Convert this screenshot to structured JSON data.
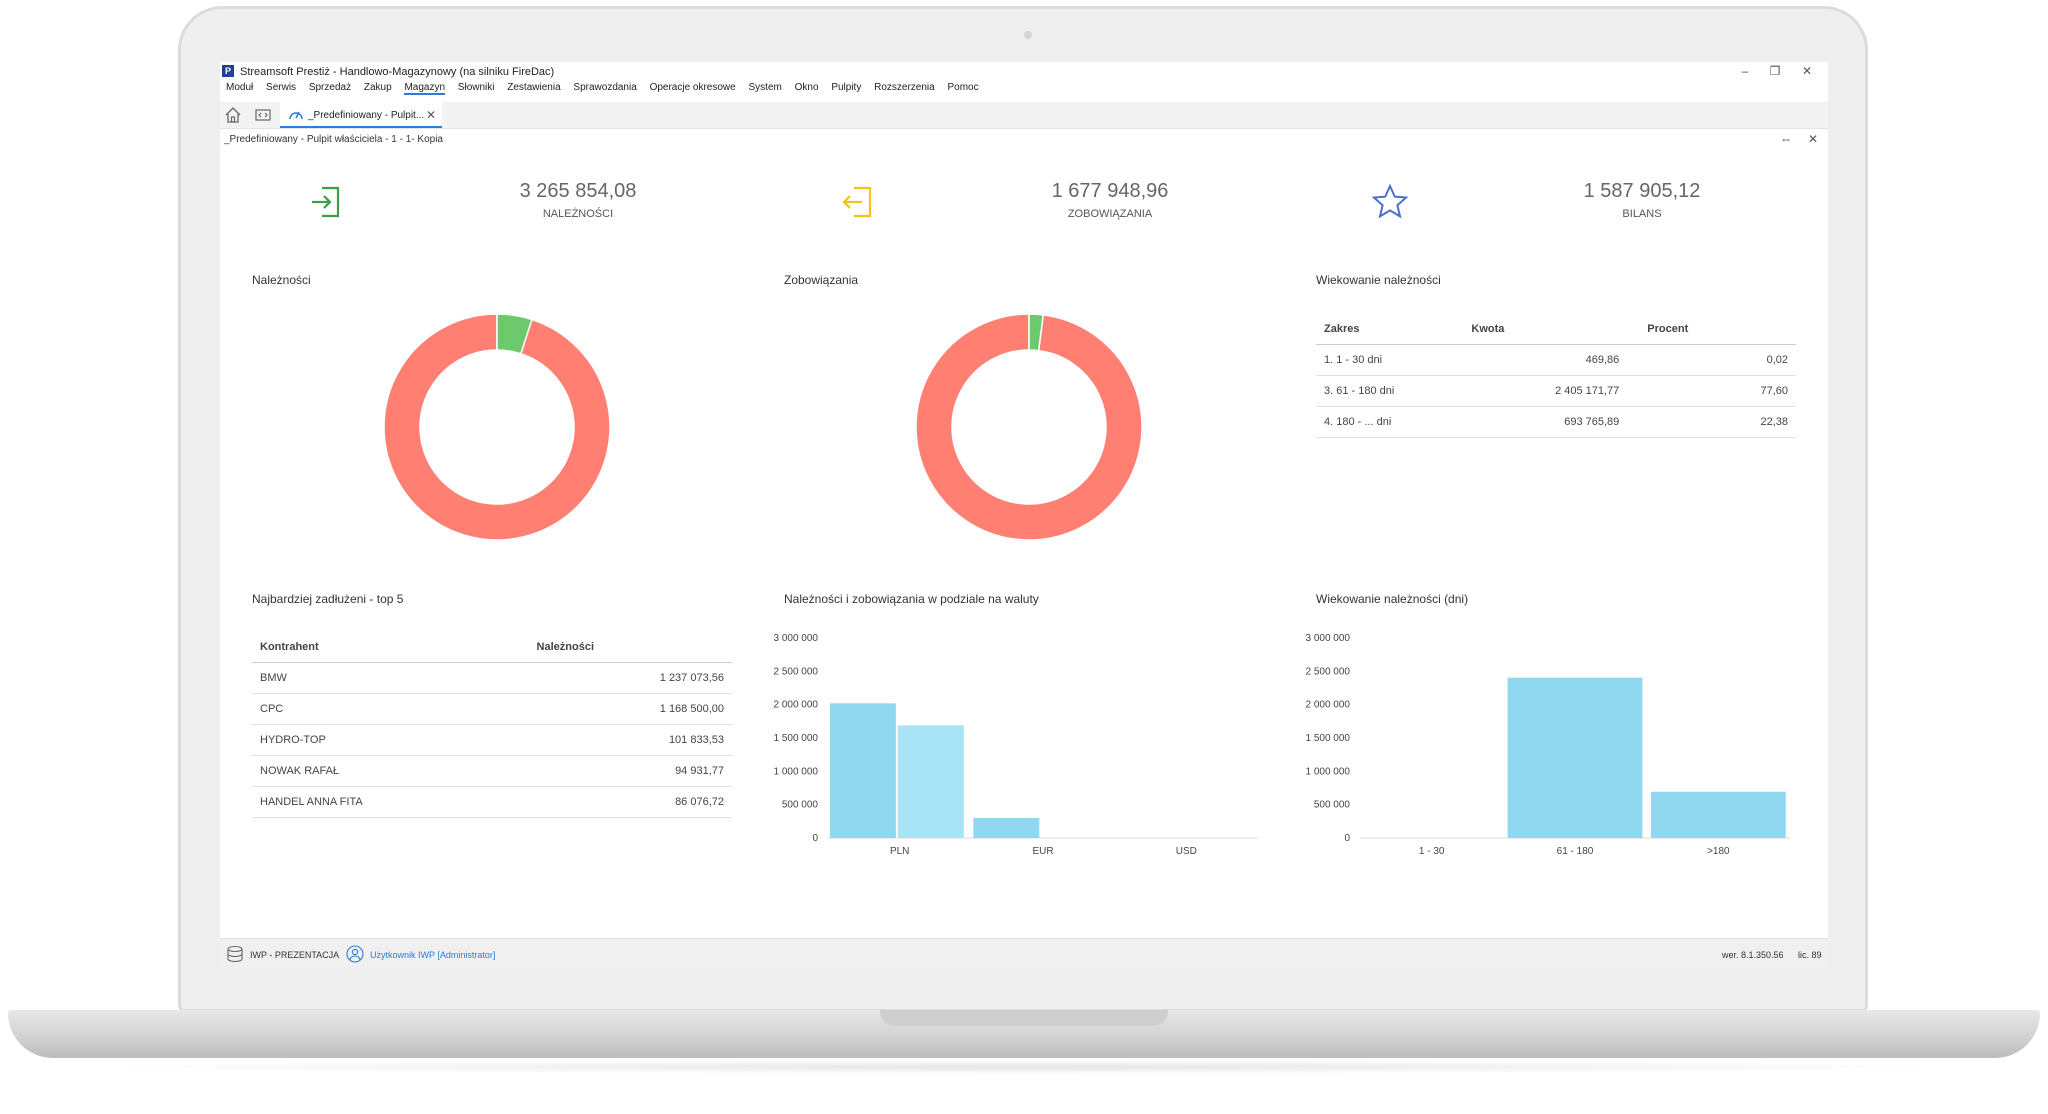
{
  "window": {
    "title": "Streamsoft Prestiż - Handlowo-Magazynowy (na silniku FireDac)",
    "app_icon": "P",
    "minimize": "–",
    "restore": "❐",
    "close": "✕"
  },
  "menu": [
    "Moduł",
    "Serwis",
    "Sprzedaż",
    "Zakup",
    "Magazyn",
    "Słowniki",
    "Zestawienia",
    "Sprawozdania",
    "Operacje okresowe",
    "System",
    "Okno",
    "Pulpity",
    "Rozszerzenia",
    "Pomoc"
  ],
  "tabs": {
    "active_label": "_Predefiniowany - Pulpit...",
    "close": "✕"
  },
  "page": {
    "title": "_Predefiniowany - Pulpit właściciela - 1 - 1- Kopia",
    "pin": "⇔",
    "close": "✕"
  },
  "kpis": [
    {
      "value": "3 265 854,08",
      "label": "NALEŻNOŚCI",
      "icon": "login-icon",
      "color": "#3aa043"
    },
    {
      "value": "1 677 948,96",
      "label": "ZOBOWIĄZANIA",
      "icon": "logout-icon",
      "color": "#f2c31c"
    },
    {
      "value": "1 587 905,12",
      "label": "BILANS",
      "icon": "star-icon",
      "color": "#4a6fc9"
    }
  ],
  "panels": {
    "receivables": "Należności",
    "liabilities": "Zobowiązania",
    "aging": "Wiekowanie należności",
    "top5": "Najbardziej zadłużeni - top 5",
    "currency": "Należności i zobowiązania w podziale na waluty",
    "aging_days": "Wiekowanie należności (dni)"
  },
  "aging_table": {
    "headers": [
      "Zakres",
      "Kwota",
      "Procent"
    ],
    "rows": [
      [
        "1. 1 - 30 dni",
        "469,86",
        "0,02"
      ],
      [
        "3. 61 - 180 dni",
        "2 405 171,77",
        "77,60"
      ],
      [
        "4. 180 - ... dni",
        "693 765,89",
        "22,38"
      ]
    ]
  },
  "top5_table": {
    "headers": [
      "Kontrahent",
      "Należności"
    ],
    "rows": [
      [
        "BMW",
        "1 237 073,56"
      ],
      [
        "CPC",
        "1 168 500,00"
      ],
      [
        "HYDRO-TOP",
        "101 833,53"
      ],
      [
        "NOWAK RAFAŁ",
        "94 931,77"
      ],
      [
        "HANDEL ANNA FITA",
        "86 076,72"
      ]
    ]
  },
  "chart_data": [
    {
      "type": "pie",
      "title": "Należności",
      "donut": true,
      "slices": [
        {
          "value": 95,
          "color": "#ff8073"
        },
        {
          "value": 5,
          "color": "#6cc96c"
        }
      ]
    },
    {
      "type": "pie",
      "title": "Zobowiązania",
      "donut": true,
      "slices": [
        {
          "value": 98,
          "color": "#ff8073"
        },
        {
          "value": 2,
          "color": "#6cc96c"
        }
      ]
    },
    {
      "type": "bar",
      "title": "Należności i zobowiązania w podziale na waluty",
      "categories": [
        "PLN",
        "EUR",
        "USD"
      ],
      "series": [
        {
          "values": [
            2020000,
            300000,
            0
          ],
          "color": "#8fd8f0"
        },
        {
          "values": [
            1690000,
            0,
            0
          ],
          "color": "#a9e4f6"
        }
      ],
      "ylim": [
        0,
        3000000
      ],
      "yticks": [
        0,
        500000,
        1000000,
        1500000,
        2000000,
        2500000,
        3000000
      ],
      "ytick_labels": [
        "0",
        "500 000",
        "1 000 000",
        "1 500 000",
        "2 000 000",
        "2 500 000",
        "3 000 000"
      ]
    },
    {
      "type": "bar",
      "title": "Wiekowanie należności (dni)",
      "categories": [
        "1 - 30",
        "61 - 180",
        ">180"
      ],
      "values": [
        469.86,
        2405171.77,
        693765.89
      ],
      "color": "#8fd8f0",
      "ylim": [
        0,
        3000000
      ],
      "yticks": [
        0,
        500000,
        1000000,
        1500000,
        2000000,
        2500000,
        3000000
      ],
      "ytick_labels": [
        "0",
        "500 000",
        "1 000 000",
        "1 500 000",
        "2 000 000",
        "2 500 000",
        "3 000 000"
      ]
    }
  ],
  "status": {
    "db_icon": "database-icon",
    "db": "IWP - PREZENTACJA",
    "user_icon": "user-icon",
    "user": "Użytkownik IWP [Administrator]",
    "version": "wer. 8.1.350.56",
    "license": "lic. 89"
  }
}
